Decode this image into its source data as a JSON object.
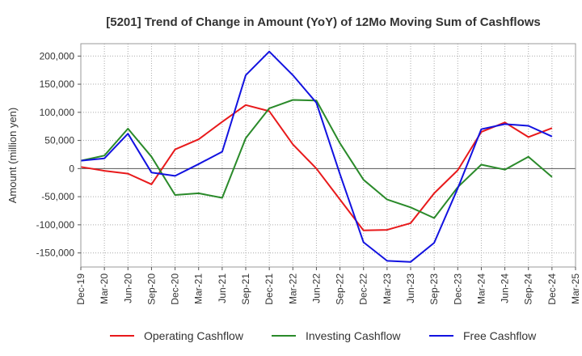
{
  "chart_data": {
    "type": "line",
    "title": "[5201]  Trend of Change in Amount (YoY) of 12Mo Moving Sum of Cashflows",
    "xlabel": "",
    "ylabel": "Amount (million yen)",
    "ylim": [
      -175000,
      222000
    ],
    "yticks": [
      200000,
      150000,
      100000,
      50000,
      0,
      -50000,
      -100000,
      -150000
    ],
    "ytick_labels": [
      "200,000",
      "150,000",
      "100,000",
      "50,000",
      "0",
      "-50,000",
      "-100,000",
      "-150,000"
    ],
    "categories": [
      "Dec-19",
      "Mar-20",
      "Jun-20",
      "Sep-20",
      "Dec-20",
      "Mar-21",
      "Jun-21",
      "Sep-21",
      "Dec-21",
      "Mar-22",
      "Jun-22",
      "Sep-22",
      "Dec-22",
      "Mar-23",
      "Jun-23",
      "Sep-23",
      "Dec-23",
      "Mar-24",
      "Jun-24",
      "Sep-24",
      "Dec-24",
      "Mar-25"
    ],
    "grid": true,
    "legend_position": "bottom",
    "series": [
      {
        "name": "Operating Cashflow",
        "color": "#e8191b",
        "values": [
          3000,
          -4000,
          -9000,
          -28000,
          34000,
          52000,
          83000,
          113000,
          102000,
          43000,
          0,
          -55000,
          -110000,
          -109000,
          -97000,
          -44000,
          -3000,
          65000,
          82000,
          56000,
          72000,
          null
        ]
      },
      {
        "name": "Investing Cashflow",
        "color": "#2a8a2a",
        "values": [
          14000,
          23000,
          71000,
          21000,
          -47000,
          -44000,
          -52000,
          54000,
          107000,
          122000,
          121000,
          45000,
          -20000,
          -55000,
          -69000,
          -88000,
          -33000,
          7000,
          -2000,
          21000,
          -15000,
          null
        ]
      },
      {
        "name": "Free Cashflow",
        "color": "#1212e0",
        "values": [
          14000,
          18000,
          62000,
          -7000,
          -13000,
          8000,
          30000,
          166000,
          208000,
          166000,
          117000,
          -10000,
          -131000,
          -164000,
          -166000,
          -132000,
          -35000,
          70000,
          79000,
          76000,
          57000,
          null
        ]
      }
    ]
  }
}
